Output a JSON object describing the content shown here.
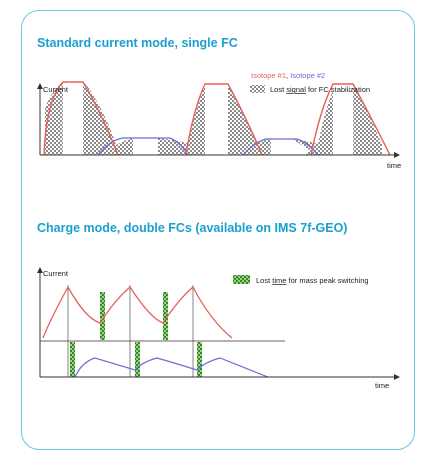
{
  "colors": {
    "frame": "#6cc6e6",
    "title": "#1aa0cf",
    "isotope1": "#e8605a",
    "isotope2": "#6a6fd0",
    "hatch": "#8a8a8a",
    "green": "#3c9a2a"
  },
  "section1": {
    "title": "Standard current mode, single FC",
    "y_label": "Current",
    "x_label": "time",
    "legend_iso1": "Isotope #1",
    "legend_sep": ", ",
    "legend_iso2": "Isotope #2",
    "legend_lost_prefix": "Lost ",
    "legend_lost_keyword": "signal",
    "legend_lost_suffix": " for FC stabilization"
  },
  "section2": {
    "title": "Charge mode, double FCs (available on IMS 7f-GEO)",
    "y_label": "Current",
    "x_label": "time",
    "legend_lost_prefix": "Lost ",
    "legend_lost_keyword": "time",
    "legend_lost_suffix": " for mass peak switching"
  }
}
